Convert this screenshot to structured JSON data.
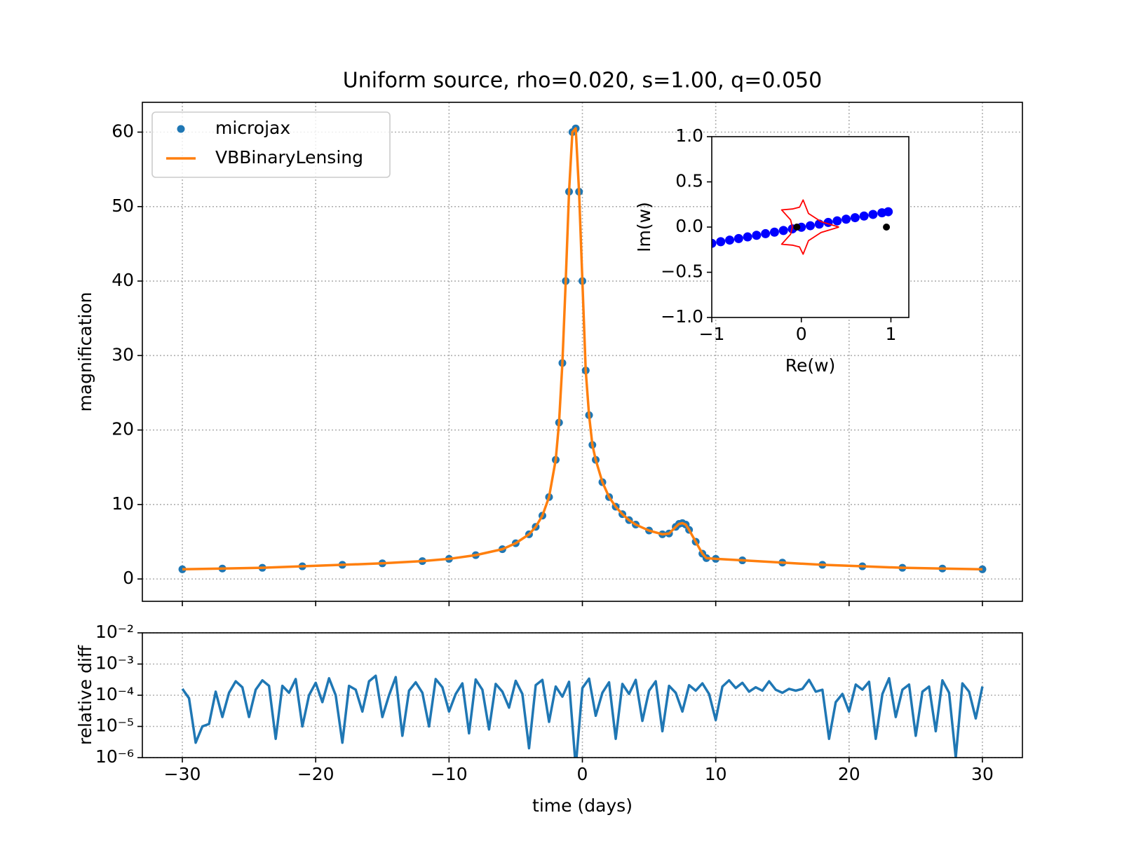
{
  "chart_data": [
    {
      "type": "line",
      "title": "Uniform source, rho=0.020, s=1.00, q=0.050",
      "ylabel": "magnification",
      "x": [
        -30,
        -27,
        -24,
        -21,
        -18,
        -15,
        -12,
        -10,
        -8,
        -6,
        -5,
        -4,
        -3.5,
        -3,
        -2.5,
        -2,
        -1.75,
        -1.5,
        -1.25,
        -1,
        -0.75,
        -0.5,
        -0.25,
        0,
        0.25,
        0.5,
        0.75,
        1,
        1.5,
        2,
        2.5,
        3,
        3.5,
        4,
        5,
        6,
        6.5,
        7,
        7.25,
        7.5,
        7.75,
        8,
        8.5,
        9,
        9.3,
        10,
        12,
        15,
        18,
        21,
        24,
        27,
        30
      ],
      "series": [
        {
          "name": "microjax",
          "color": "#1f77b4",
          "style": "markers",
          "values": [
            1.3,
            1.4,
            1.5,
            1.7,
            1.9,
            2.1,
            2.4,
            2.7,
            3.2,
            4.0,
            4.8,
            6.0,
            7.0,
            8.5,
            11,
            16,
            21,
            29,
            40,
            52,
            60,
            60.5,
            52,
            40,
            28,
            22,
            18,
            16,
            13,
            11,
            9.7,
            8.7,
            7.9,
            7.3,
            6.5,
            6.0,
            6.1,
            7.0,
            7.4,
            7.5,
            7.3,
            6.6,
            5.0,
            3.4,
            2.8,
            2.7,
            2.5,
            2.2,
            1.9,
            1.7,
            1.5,
            1.4,
            1.3
          ]
        },
        {
          "name": "VBBinaryLensing",
          "color": "#ff7f0e",
          "style": "line",
          "values": [
            1.3,
            1.4,
            1.5,
            1.7,
            1.9,
            2.1,
            2.4,
            2.7,
            3.2,
            4.0,
            4.8,
            6.0,
            7.0,
            8.5,
            11,
            16,
            21,
            29,
            40,
            52,
            60,
            60.5,
            52,
            40,
            28,
            22,
            18,
            16,
            13,
            11,
            9.7,
            8.7,
            7.9,
            7.3,
            6.5,
            6.0,
            6.1,
            7.0,
            7.4,
            7.5,
            7.3,
            6.6,
            5.0,
            3.4,
            2.8,
            2.7,
            2.5,
            2.2,
            1.9,
            1.7,
            1.5,
            1.4,
            1.3
          ]
        }
      ],
      "xlim": [
        -33,
        33
      ],
      "ylim": [
        -3,
        64
      ],
      "xticks": [
        -30,
        -20,
        -10,
        0,
        10,
        20,
        30
      ],
      "xticklabels": false,
      "yticks": [
        0,
        10,
        20,
        30,
        40,
        50,
        60
      ],
      "grid": true,
      "legend": "upper left"
    },
    {
      "type": "line",
      "xlabel": "Re(w)",
      "ylabel": "Im(w)",
      "series": [
        {
          "color": "#0000ff",
          "style": "markers",
          "x": [
            -1.0,
            -0.9,
            -0.8,
            -0.7,
            -0.6,
            -0.5,
            -0.4,
            -0.3,
            -0.2,
            -0.1,
            0,
            0.1,
            0.2,
            0.3,
            0.4,
            0.5,
            0.6,
            0.7,
            0.8,
            0.9,
            0.97
          ],
          "values": [
            -0.18,
            -0.162,
            -0.144,
            -0.127,
            -0.109,
            -0.091,
            -0.073,
            -0.056,
            -0.038,
            -0.02,
            -0.002,
            0.015,
            0.033,
            0.051,
            0.069,
            0.087,
            0.104,
            0.122,
            0.14,
            0.158,
            0.17
          ]
        },
        {
          "color": "#ff0000",
          "style": "line",
          "x": [
            0.42,
            0.22,
            0.08,
            0.02,
            -0.02,
            -0.1,
            -0.22,
            -0.12,
            -0.1,
            -0.12,
            -0.22,
            -0.1,
            -0.02,
            0.02,
            0.08,
            0.22,
            0.42
          ],
          "values": [
            0,
            0.06,
            0.15,
            0.3,
            0.22,
            0.2,
            0.19,
            0.08,
            0,
            -0.08,
            -0.19,
            -0.2,
            -0.22,
            -0.3,
            -0.15,
            -0.06,
            0
          ]
        },
        {
          "color": "#000000",
          "style": "dots",
          "x": [
            -0.05,
            0.95
          ],
          "values": [
            0,
            0
          ]
        }
      ],
      "xlim": [
        -1,
        1.2
      ],
      "ylim": [
        -1,
        1
      ],
      "xticks": [
        {
          "value": -1,
          "label": "−1"
        },
        0,
        1
      ],
      "yticks": [
        {
          "value": -1,
          "label": "−1.0"
        },
        {
          "value": -0.5,
          "label": "−0.5"
        },
        {
          "value": 0,
          "label": "0.0"
        },
        0.5,
        {
          "value": 1,
          "label": "1.0"
        }
      ],
      "grid": false
    },
    {
      "type": "line",
      "xlabel": "time (days)",
      "ylabel": "relative diff",
      "log_y": true,
      "x": [
        -30,
        -29.5,
        -29,
        -28.5,
        -28,
        -27.5,
        -27,
        -26.5,
        -26,
        -25.5,
        -25,
        -24.5,
        -24,
        -23.5,
        -23,
        -22.5,
        -22,
        -21.5,
        -21,
        -20.5,
        -20,
        -19.5,
        -19,
        -18.5,
        -18,
        -17.5,
        -17,
        -16.5,
        -16,
        -15.5,
        -15,
        -14.5,
        -14,
        -13.5,
        -13,
        -12.5,
        -12,
        -11.5,
        -11,
        -10.5,
        -10,
        -9.5,
        -9,
        -8.5,
        -8,
        -7.5,
        -7,
        -6.5,
        -6,
        -5.5,
        -5,
        -4.5,
        -4,
        -3.5,
        -3,
        -2.5,
        -2,
        -1.5,
        -1,
        -0.5,
        0,
        0.5,
        1,
        1.5,
        2,
        2.5,
        3,
        3.5,
        4,
        4.5,
        5,
        5.5,
        6,
        6.5,
        7,
        7.5,
        8,
        8.5,
        9,
        9.5,
        10,
        10.5,
        11,
        11.5,
        12,
        12.5,
        13,
        13.5,
        14,
        14.5,
        15,
        15.5,
        16,
        16.5,
        17,
        17.5,
        18,
        18.5,
        19,
        19.5,
        20,
        20.5,
        21,
        21.5,
        22,
        22.5,
        23,
        23.5,
        24,
        24.5,
        25,
        25.5,
        26,
        26.5,
        27,
        27.5,
        28,
        28.5,
        29,
        29.5,
        30
      ],
      "series": [
        {
          "color": "#1f77b4",
          "style": "line",
          "values": [
            0.00016,
            8e-05,
            3e-06,
            1e-05,
            1.2e-05,
            0.00013,
            2e-05,
            0.00012,
            0.00028,
            0.00018,
            2e-05,
            0.00015,
            0.0003,
            0.0002,
            4e-06,
            0.0002,
            0.00012,
            0.00033,
            1e-05,
            0.0001,
            0.00025,
            6e-05,
            0.00035,
            0.0001,
            3e-06,
            0.0002,
            0.00015,
            3e-05,
            0.00028,
            0.00042,
            2e-05,
            0.0001,
            0.00038,
            5e-06,
            0.00014,
            0.00026,
            0.00012,
            1e-05,
            0.00033,
            0.00018,
            3e-05,
            0.00011,
            0.00024,
            6e-06,
            0.00032,
            0.00015,
            8e-06,
            0.00023,
            0.00013,
            4e-05,
            0.00029,
            0.00011,
            2e-06,
            0.00021,
            0.00031,
            1.4e-05,
            0.00019,
            9e-05,
            0.00027,
            5e-07,
            0.00017,
            0.00034,
            2.2e-05,
            0.00012,
            0.00026,
            4e-06,
            0.00023,
            0.00011,
            0.00031,
            1.5e-05,
            0.00014,
            0.00028,
            7e-06,
            0.0002,
            0.00012,
            3e-05,
            0.00021,
            0.00014,
            0.00024,
            0.00011,
            1.6e-05,
            0.00019,
            0.0003,
            0.00017,
            0.00025,
            0.00013,
            0.00018,
            0.00014,
            0.00028,
            0.00015,
            0.00012,
            0.00016,
            0.00014,
            0.00016,
            0.00031,
            0.00013,
            0.00015,
            4e-06,
            6e-05,
            0.00011,
            3e-05,
            0.00022,
            0.00015,
            0.00027,
            4e-06,
            0.00011,
            0.00035,
            2e-05,
            0.00015,
            0.00022,
            5e-06,
            0.00013,
            0.00019,
            7e-06,
            0.0003,
            0.00012,
            1e-06,
            0.00024,
            0.00013,
            1.8e-05,
            0.00019
          ]
        }
      ],
      "xlim": [
        -33,
        33
      ],
      "ylim": [
        1e-06,
        0.01
      ],
      "xticks": [
        {
          "value": -30,
          "label": "−30"
        },
        {
          "value": -20,
          "label": "−20"
        },
        {
          "value": -10,
          "label": "−10"
        },
        0,
        10,
        20,
        30
      ],
      "yticks": [
        {
          "value": 1e-06,
          "label": "10⁻⁶"
        },
        {
          "value": 1e-05,
          "label": "10⁻⁵"
        },
        {
          "value": 0.0001,
          "label": "10⁻⁴"
        },
        {
          "value": 0.001,
          "label": "10⁻³"
        },
        {
          "value": 0.01,
          "label": "10⁻²"
        }
      ],
      "grid": true
    }
  ]
}
